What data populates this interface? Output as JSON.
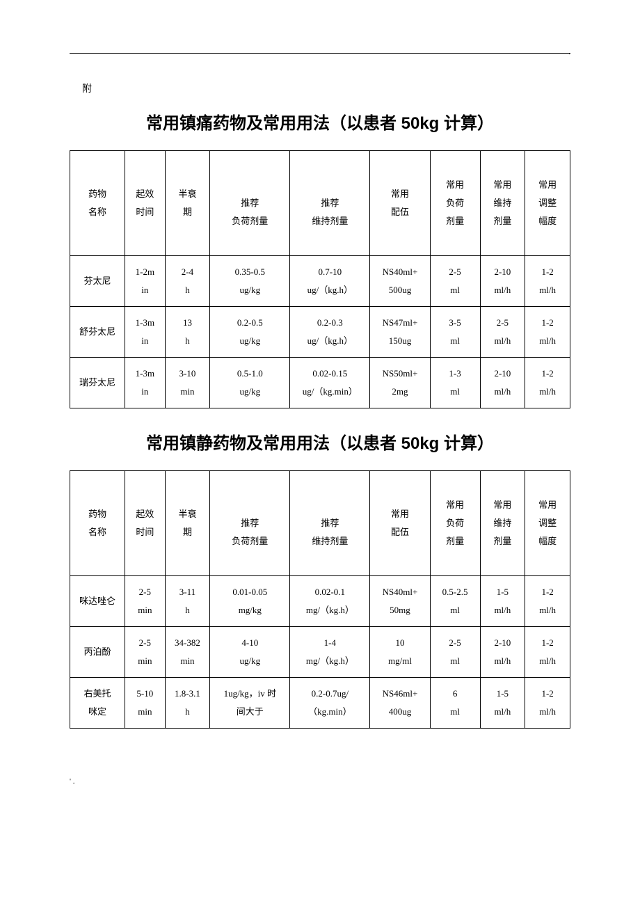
{
  "page": {
    "prefix": "附",
    "top_dot": ".",
    "footer_mark": "' ."
  },
  "title1": "常用镇痛药物及常用用法（以患者 50kg 计算）",
  "title2": "常用镇静药物及常用用法（以患者 50kg 计算）",
  "headers": {
    "name": "药物\n名称",
    "onset": "起效\n时间",
    "half": "半衰\n期",
    "rec_load_a": "推",
    "rec_load_b": "荐",
    "rec_load_c": "负荷剂量",
    "rec_maint_a": "推",
    "rec_maint_b": "荐",
    "rec_maint_c": "维持剂量",
    "comp": "常用\n配伍",
    "cload": "常用\n负荷\n剂量",
    "cmaint": "常用\n维持\n剂量",
    "cadj": "常用\n调整\n幅度"
  },
  "table1": {
    "rows": [
      {
        "name": "芬太尼",
        "onset": "1-2m\nin",
        "half": "2-4\nh",
        "load": "0.35-0.5\nug/kg",
        "maint": "0.7-10\nug/（kg.h）",
        "comp": "NS40ml+\n500ug",
        "cload": "2-5\nml",
        "cmaint": "2-10\nml/h",
        "cadj": "1-2\nml/h"
      },
      {
        "name": "舒芬太尼",
        "onset": "1-3m\nin",
        "half": "13\nh",
        "load": "0.2-0.5\nug/kg",
        "maint": "0.2-0.3\nug/（kg.h）",
        "comp": "NS47ml+\n150ug",
        "cload": "3-5\nml",
        "cmaint": "2-5\nml/h",
        "cadj": "1-2\nml/h"
      },
      {
        "name": "瑞芬太尼",
        "onset": "1-3m\nin",
        "half": "3-10\nmin",
        "load": "0.5-1.0\nug/kg",
        "maint": "0.02-0.15\nug/（kg.min）",
        "comp": "NS50ml+\n2mg",
        "cload": "1-3\nml",
        "cmaint": "2-10\nml/h",
        "cadj": "1-2\nml/h"
      }
    ]
  },
  "table2": {
    "rows": [
      {
        "name": "咪达唑仑",
        "onset": "2-5\nmin",
        "half": "3-11\nh",
        "load": "0.01-0.05\nmg/kg",
        "maint": "0.02-0.1\nmg/（kg.h）",
        "comp": "NS40ml+\n50mg",
        "cload": "0.5-2.5\nml",
        "cmaint": "1-5\nml/h",
        "cadj": "1-2\nml/h"
      },
      {
        "name": "丙泊酚",
        "onset": "2-5\nmin",
        "half": "34-382\nmin",
        "load": "4-10\nug/kg",
        "maint": "1-4\nmg/（kg.h）",
        "comp": "10\nmg/ml",
        "cload": "2-5\nml",
        "cmaint": "2-10\nml/h",
        "cadj": "1-2\nml/h"
      },
      {
        "name": "右美托\n咪定",
        "onset": "5-10\nmin",
        "half": "1.8-3.1\nh",
        "load": "1ug/kg，iv 时\n间大于",
        "maint": "0.2-0.7ug/\n（kg.min）",
        "comp": "NS46ml+\n400ug",
        "cload": "6\nml",
        "cmaint": "1-5\nml/h",
        "cadj": "1-2\nml/h"
      }
    ]
  }
}
